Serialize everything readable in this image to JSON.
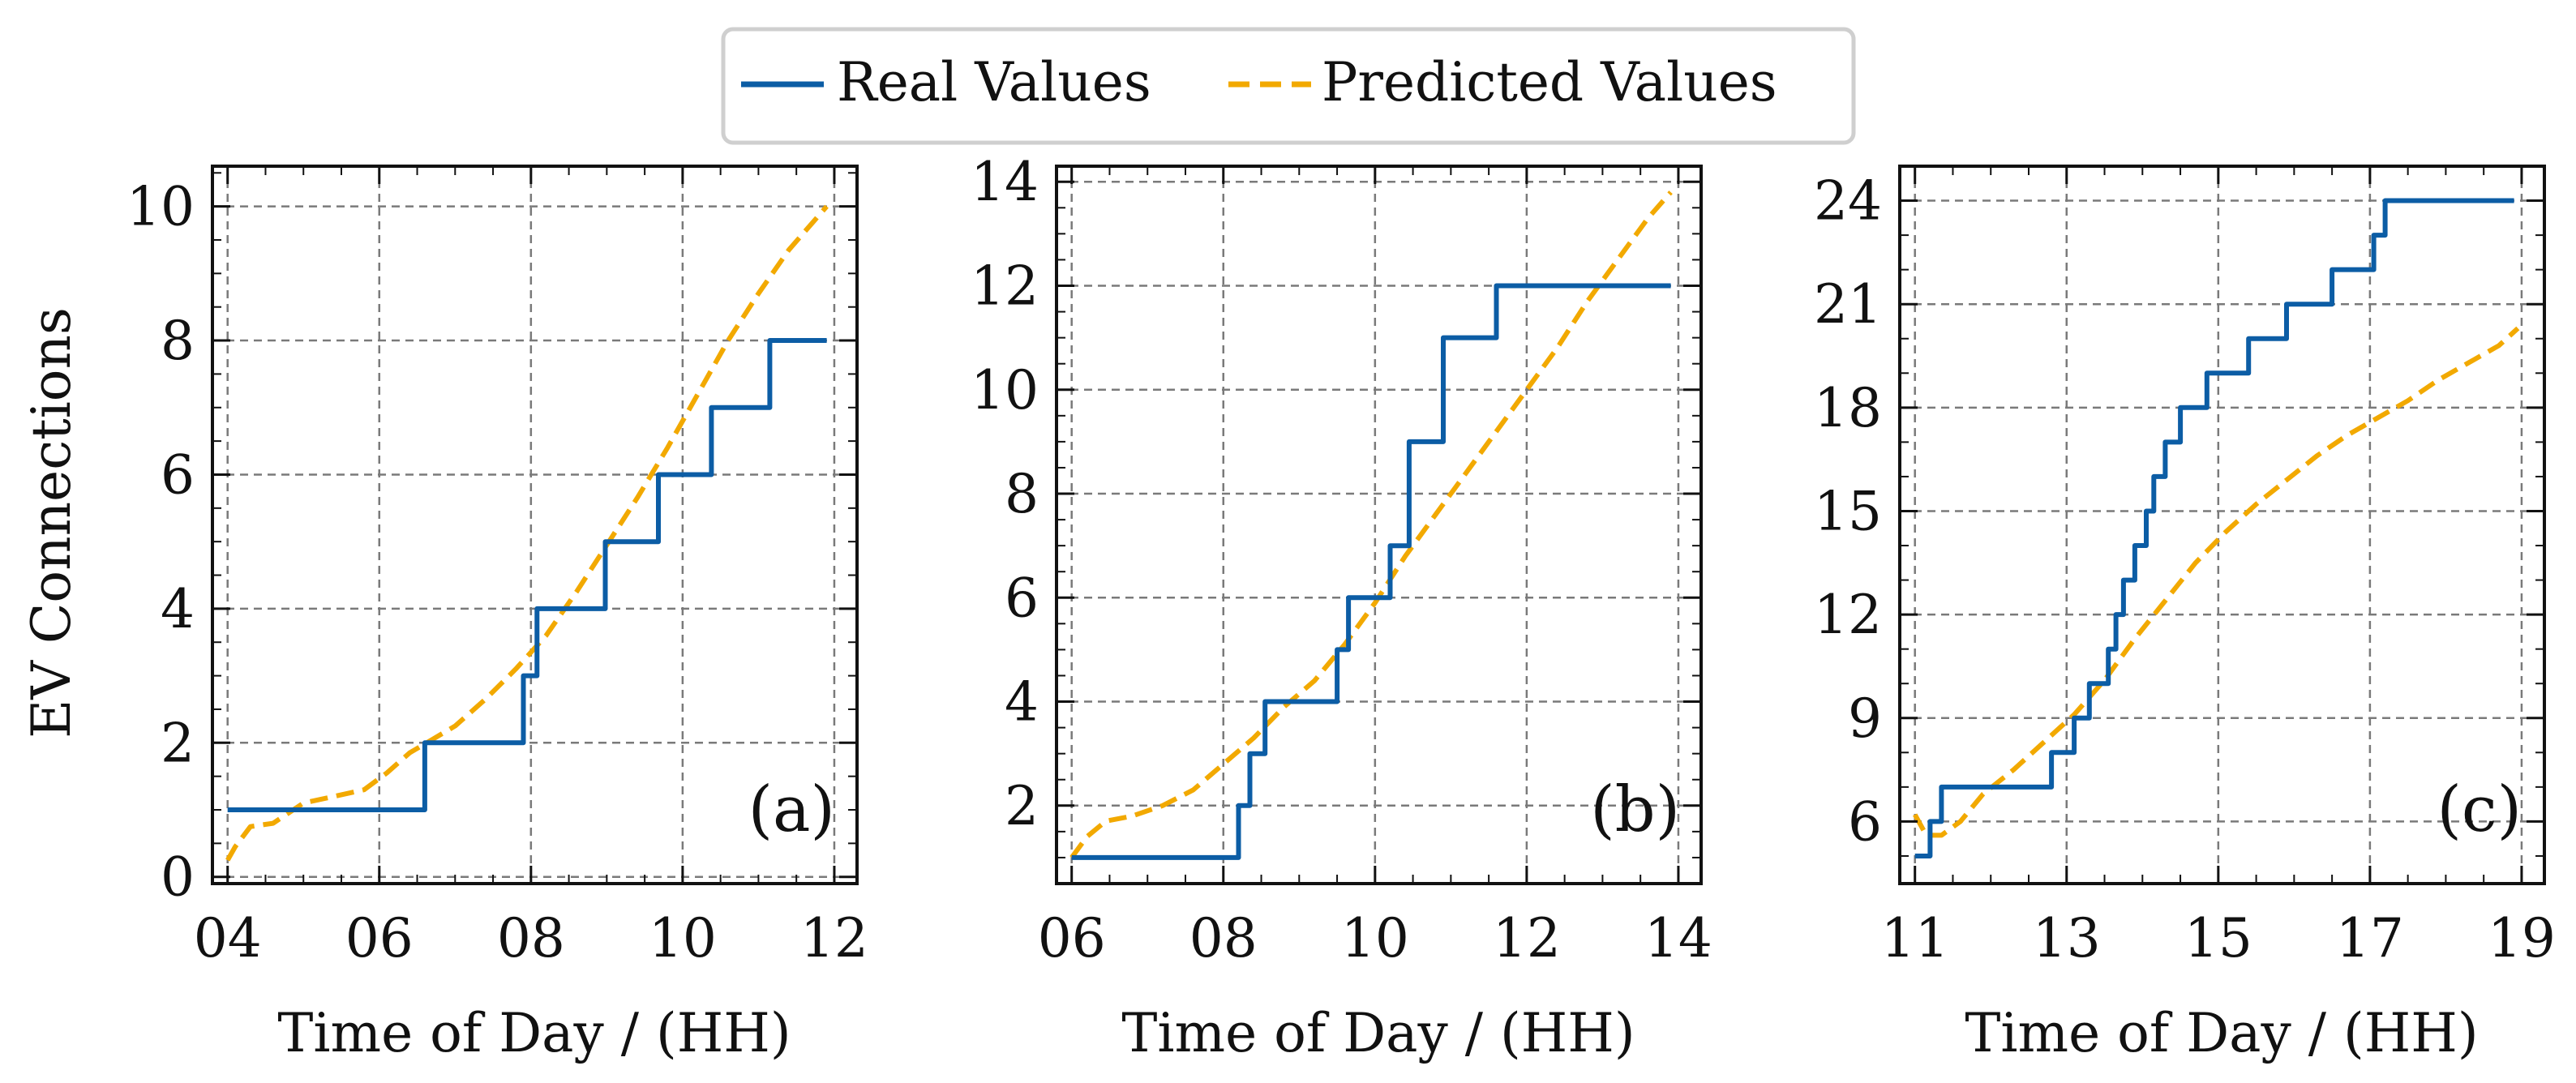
{
  "legend": {
    "entries": [
      {
        "label": "Real Values",
        "color": "#0C5DA5",
        "style": "solid"
      },
      {
        "label": "Predicted Values",
        "color": "#F2A900",
        "style": "dashed"
      }
    ],
    "placement": "top-center"
  },
  "shared": {
    "ylabel": "EV Connections",
    "xlabel": "Time of Day / (HH)"
  },
  "chart_data": [
    {
      "type": "line",
      "panel_label": "(a)",
      "xlabel": "Time of Day / (HH)",
      "ylabel": "EV Connections",
      "xlim": [
        3.8,
        12.3
      ],
      "ylim": [
        -0.1,
        10.6
      ],
      "xticks": [
        4,
        6,
        8,
        10,
        12
      ],
      "xtick_labels": [
        "04",
        "06",
        "08",
        "10",
        "12"
      ],
      "yticks": [
        0,
        2,
        4,
        6,
        8,
        10
      ],
      "ytick_labels": [
        "0",
        "2",
        "4",
        "6",
        "8",
        "10"
      ],
      "grid": true,
      "series": [
        {
          "name": "Real Values",
          "color": "#0C5DA5",
          "style": "step",
          "x": [
            4.0,
            6.6,
            6.6,
            7.9,
            7.9,
            8.08,
            8.08,
            8.98,
            8.98,
            9.68,
            9.68,
            10.38,
            10.38,
            11.15,
            11.15,
            11.9
          ],
          "y": [
            1,
            1,
            2,
            2,
            3,
            3,
            4,
            4,
            5,
            5,
            6,
            6,
            7,
            7,
            8,
            8
          ]
        },
        {
          "name": "Predicted Values",
          "color": "#F2A900",
          "style": "dashed",
          "x": [
            4.0,
            4.1,
            4.3,
            4.6,
            5.0,
            5.4,
            5.8,
            6.1,
            6.4,
            6.7,
            7.0,
            7.4,
            7.8,
            8.2,
            8.6,
            9.0,
            9.4,
            9.8,
            10.2,
            10.6,
            11.0,
            11.4,
            11.9
          ],
          "y": [
            0.25,
            0.45,
            0.75,
            0.8,
            1.1,
            1.2,
            1.3,
            1.55,
            1.85,
            2.05,
            2.25,
            2.65,
            3.1,
            3.6,
            4.25,
            4.95,
            5.65,
            6.4,
            7.2,
            8.0,
            8.7,
            9.35,
            10.0
          ]
        }
      ]
    },
    {
      "type": "line",
      "panel_label": "(b)",
      "xlabel": "Time of Day / (HH)",
      "xlim": [
        5.8,
        14.3
      ],
      "ylim": [
        0.5,
        14.3
      ],
      "xticks": [
        6,
        8,
        10,
        12,
        14
      ],
      "xtick_labels": [
        "06",
        "08",
        "10",
        "12",
        "14"
      ],
      "yticks": [
        2,
        4,
        6,
        8,
        10,
        12,
        14
      ],
      "ytick_labels": [
        "2",
        "4",
        "6",
        "8",
        "10",
        "12",
        "14"
      ],
      "grid": true,
      "series": [
        {
          "name": "Real Values",
          "color": "#0C5DA5",
          "style": "step",
          "x": [
            6.0,
            8.2,
            8.2,
            8.35,
            8.35,
            8.55,
            8.55,
            8.85,
            8.85,
            9.5,
            9.5,
            9.65,
            9.65,
            9.85,
            9.85,
            10.2,
            10.2,
            10.45,
            10.45,
            10.9,
            10.9,
            11.6,
            11.6,
            12.3,
            12.3,
            13.9
          ],
          "y": [
            1,
            1,
            2,
            2,
            3,
            3,
            4,
            4,
            4,
            4,
            5,
            5,
            6,
            6,
            6,
            6,
            7,
            7,
            9,
            9,
            11,
            11,
            12,
            12,
            12,
            12
          ]
        },
        {
          "name": "Predicted Values",
          "color": "#F2A900",
          "style": "dashed",
          "x": [
            6.0,
            6.2,
            6.45,
            6.8,
            7.2,
            7.6,
            8.0,
            8.4,
            8.8,
            9.2,
            9.6,
            10.0,
            10.4,
            10.8,
            11.2,
            11.6,
            12.0,
            12.4,
            12.8,
            13.2,
            13.6,
            13.9
          ],
          "y": [
            1.0,
            1.4,
            1.7,
            1.8,
            2.0,
            2.3,
            2.8,
            3.3,
            3.9,
            4.4,
            5.1,
            5.9,
            6.8,
            7.6,
            8.4,
            9.2,
            10.0,
            10.8,
            11.7,
            12.5,
            13.3,
            13.8
          ]
        }
      ]
    },
    {
      "type": "line",
      "panel_label": "(c)",
      "xlabel": "Time of Day / (HH)",
      "xlim": [
        10.8,
        19.3
      ],
      "ylim": [
        4.2,
        25.0
      ],
      "xticks": [
        11,
        13,
        15,
        17,
        19
      ],
      "xtick_labels": [
        "11",
        "13",
        "15",
        "17",
        "19"
      ],
      "yticks": [
        6,
        9,
        12,
        15,
        18,
        21,
        24
      ],
      "ytick_labels": [
        "6",
        "9",
        "12",
        "15",
        "18",
        "21",
        "24"
      ],
      "grid": true,
      "series": [
        {
          "name": "Real Values",
          "color": "#0C5DA5",
          "style": "step",
          "x": [
            11.0,
            11.2,
            11.2,
            11.35,
            11.35,
            12.8,
            12.8,
            13.1,
            13.1,
            13.3,
            13.3,
            13.55,
            13.55,
            13.65,
            13.65,
            13.75,
            13.75,
            13.9,
            13.9,
            14.05,
            14.05,
            14.15,
            14.15,
            14.3,
            14.3,
            14.5,
            14.5,
            14.85,
            14.85,
            15.4,
            15.4,
            15.9,
            15.9,
            16.5,
            16.5,
            17.05,
            17.05,
            17.2,
            17.2,
            17.45,
            17.45,
            17.75,
            17.75,
            18.9
          ],
          "y": [
            5,
            5,
            6,
            6,
            7,
            7,
            8,
            8,
            9,
            9,
            10,
            10,
            11,
            11,
            12,
            12,
            13,
            13,
            14,
            14,
            15,
            15,
            16,
            16,
            17,
            17,
            18,
            18,
            19,
            19,
            20,
            20,
            21,
            21,
            22,
            22,
            23,
            23,
            24,
            24,
            24,
            24,
            24,
            24
          ]
        },
        {
          "name": "Predicted Values",
          "color": "#F2A900",
          "style": "dashed",
          "x": [
            11.0,
            11.15,
            11.35,
            11.6,
            11.9,
            12.3,
            12.7,
            13.1,
            13.5,
            13.9,
            14.3,
            14.7,
            15.1,
            15.5,
            15.9,
            16.3,
            16.7,
            17.1,
            17.5,
            17.9,
            18.3,
            18.7,
            18.95
          ],
          "y": [
            6.2,
            5.6,
            5.6,
            6.0,
            6.8,
            7.5,
            8.3,
            9.1,
            10.1,
            11.3,
            12.4,
            13.5,
            14.4,
            15.2,
            15.9,
            16.6,
            17.2,
            17.7,
            18.2,
            18.8,
            19.3,
            19.8,
            20.3
          ]
        }
      ]
    }
  ]
}
